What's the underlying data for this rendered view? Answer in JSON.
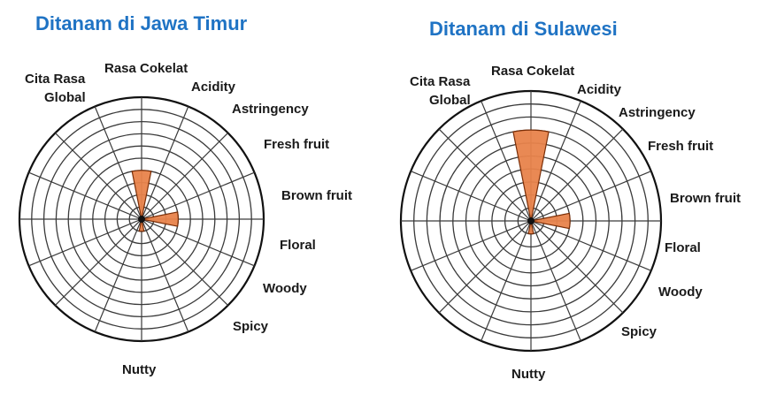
{
  "chart_data": [
    {
      "type": "polar-area",
      "title": "Ditanam di Jawa Timur",
      "categories": [
        "Rasa Cokelat",
        "Acidity",
        "Astringency",
        "Fresh fruit",
        "Brown fruit",
        "Floral",
        "Woody",
        "Spicy",
        "Nutty",
        "Cita Rasa Global"
      ],
      "values": [
        4,
        0,
        0,
        0,
        3,
        0,
        0,
        0,
        1,
        0
      ],
      "rlim": [
        0,
        10
      ],
      "grid": true
    },
    {
      "type": "polar-area",
      "title": "Ditanam di Sulawesi",
      "categories": [
        "Rasa Cokelat",
        "Acidity",
        "Astringency",
        "Fresh fruit",
        "Brown fruit",
        "Floral",
        "Woody",
        "Spicy",
        "Nutty",
        "Cita Rasa Global"
      ],
      "values": [
        7,
        0,
        0,
        0,
        3,
        0,
        0,
        0,
        1,
        0
      ],
      "rlim": [
        0,
        10
      ],
      "grid": true
    }
  ],
  "colors": {
    "title": "#1f73c4",
    "wedge": "#e8834b",
    "wedge_edge": "#7a2e07"
  }
}
